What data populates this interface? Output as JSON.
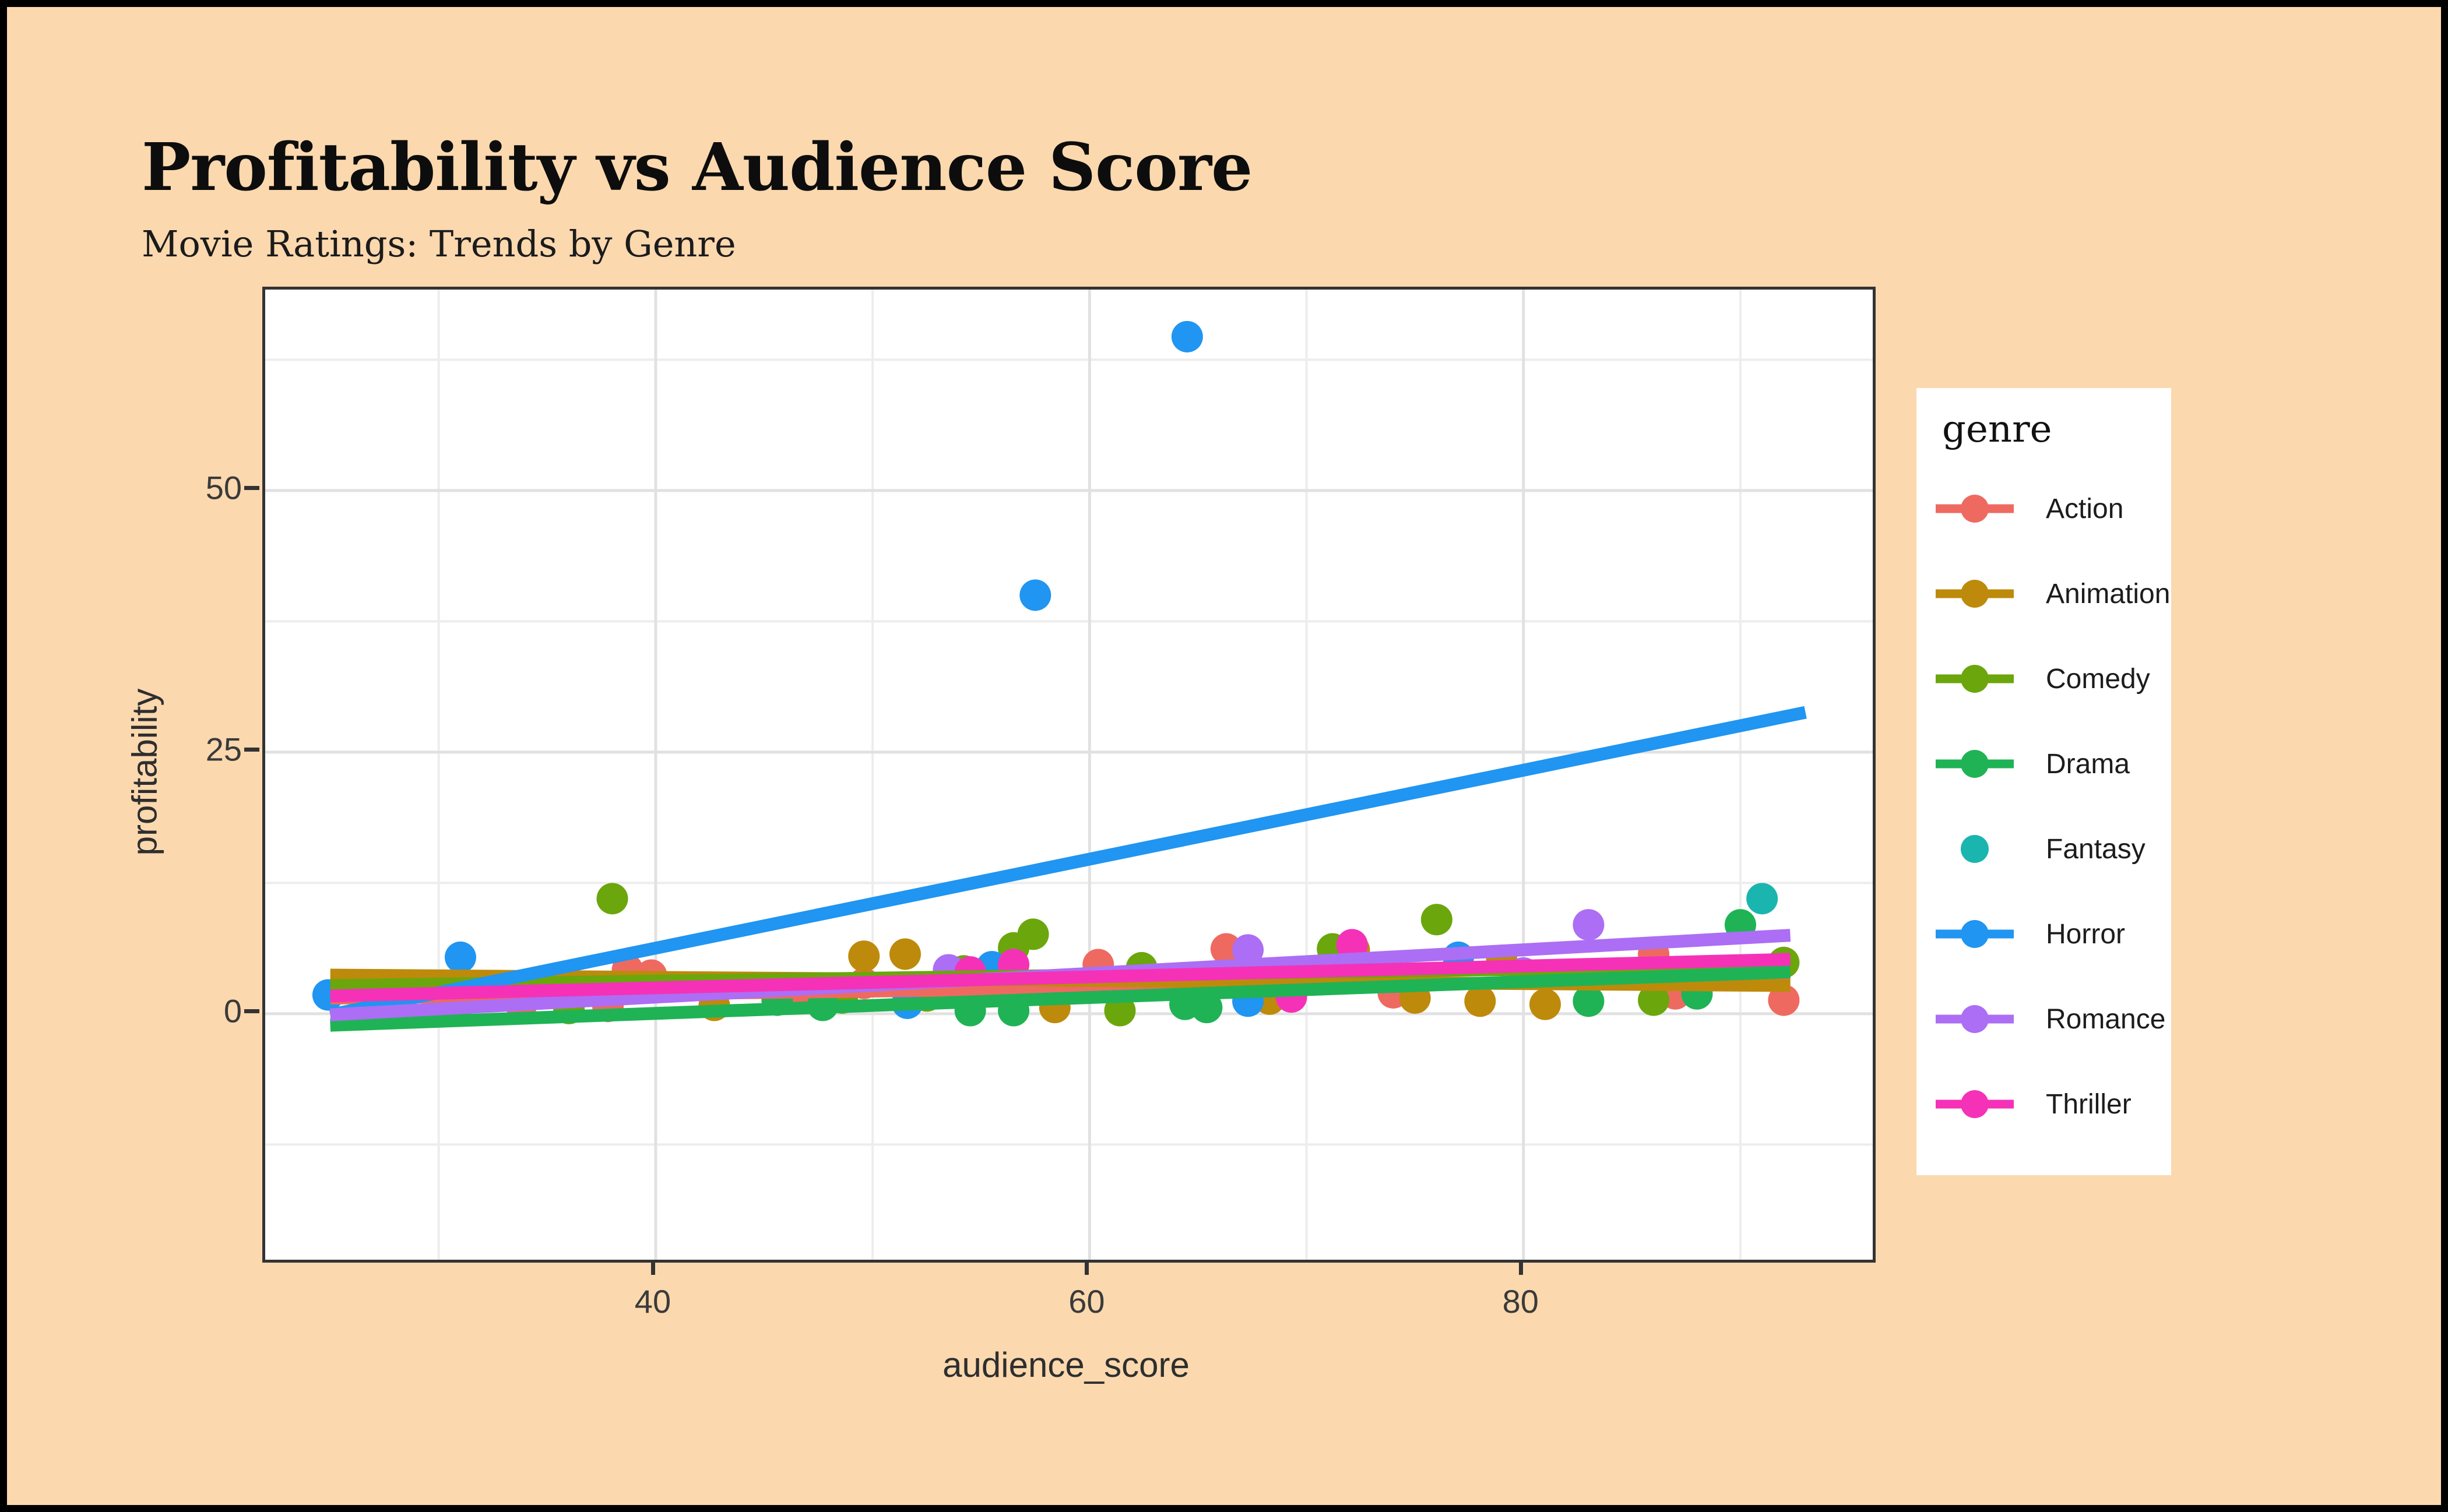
{
  "frame": {
    "background": "#FBD8AE",
    "border_color": "#000000",
    "panel_background": "#FFFFFF"
  },
  "header": {
    "title": "Profitability vs Audience Score",
    "subtitle": "Movie Ratings: Trends by Genre"
  },
  "chart_data": {
    "type": "scatter",
    "title": "Profitability vs Audience Score",
    "subtitle": "Movie Ratings: Trends by Genre",
    "xlabel": "audience_score",
    "ylabel": "profitability",
    "legend_title": "genre",
    "legend_position": "right",
    "grid": "on",
    "x_domain": [
      22.0,
      96.1
    ],
    "y_domain": [
      -23.5,
      69.2
    ],
    "x_ticks": [
      40,
      60,
      80
    ],
    "y_ticks": [
      0,
      25,
      50
    ],
    "x_minor": [
      30,
      50,
      70,
      90
    ],
    "y_minor": [
      -12.5,
      12.5,
      37.5,
      62.5
    ],
    "grid_major_color": "#E1E1E1",
    "grid_minor_color": "#EDEDED",
    "point_radius": 27,
    "line_width": 22,
    "series": [
      {
        "name": "Action",
        "color": "#EE6A60",
        "key": "line-point",
        "points": [
          [
            33.8,
            0.8
          ],
          [
            37.8,
            0.7
          ],
          [
            38.7,
            4.2
          ],
          [
            39.8,
            3.7
          ],
          [
            45.7,
            1.7
          ],
          [
            46.8,
            1.5
          ],
          [
            49.6,
            2.9
          ],
          [
            60.4,
            4.7
          ],
          [
            66.3,
            6.2
          ],
          [
            74.0,
            2.0
          ],
          [
            86.0,
            5.7
          ],
          [
            87.0,
            1.9
          ],
          [
            92.0,
            1.3
          ]
        ],
        "trend": [
          [
            25.0,
            1.5
          ],
          [
            92.3,
            3.3
          ]
        ]
      },
      {
        "name": "Animation",
        "color": "#BE8A0B",
        "key": "line-point",
        "points": [
          [
            42.7,
            0.8
          ],
          [
            49.6,
            5.5
          ],
          [
            51.5,
            5.7
          ],
          [
            58.4,
            0.6
          ],
          [
            68.3,
            1.4
          ],
          [
            72.2,
            6.1
          ],
          [
            75.0,
            1.5
          ],
          [
            78.0,
            1.2
          ],
          [
            79.0,
            5.1
          ],
          [
            81.0,
            0.9
          ]
        ],
        "trend": [
          [
            25.0,
            3.7
          ],
          [
            92.3,
            2.7
          ]
        ]
      },
      {
        "name": "Comedy",
        "color": "#6BA60C",
        "key": "line-point",
        "points": [
          [
            31.0,
            1.1
          ],
          [
            36.0,
            0.5
          ],
          [
            38.0,
            11.0
          ],
          [
            48.6,
            1.5
          ],
          [
            52.5,
            1.7
          ],
          [
            54.2,
            4.1
          ],
          [
            56.5,
            6.3
          ],
          [
            57.4,
            7.6
          ],
          [
            61.4,
            0.3
          ],
          [
            62.4,
            4.4
          ],
          [
            71.2,
            6.2
          ],
          [
            76.0,
            9.0
          ],
          [
            86.0,
            1.3
          ],
          [
            92.0,
            4.9
          ]
        ],
        "trend": [
          [
            25.0,
            2.7
          ],
          [
            92.3,
            4.6
          ]
        ]
      },
      {
        "name": "Drama",
        "color": "#1FB355",
        "key": "line-point",
        "points": [
          [
            45.6,
            1.3
          ],
          [
            47.7,
            0.8
          ],
          [
            54.5,
            0.3
          ],
          [
            56.5,
            0.3
          ],
          [
            64.4,
            0.9
          ],
          [
            65.4,
            0.6
          ],
          [
            83.0,
            1.2
          ],
          [
            88.0,
            1.9
          ],
          [
            90.0,
            8.5
          ]
        ],
        "trend": [
          [
            25.0,
            -1.1
          ],
          [
            92.3,
            4.0
          ]
        ]
      },
      {
        "name": "Fantasy",
        "color": "#1BB5AF",
        "key": "point",
        "points": [
          [
            91.0,
            11.0
          ]
        ],
        "trend": null
      },
      {
        "name": "Horror",
        "color": "#2095F1",
        "key": "line-point",
        "points": [
          [
            24.9,
            1.8
          ],
          [
            31.0,
            5.4
          ],
          [
            51.6,
            1.0
          ],
          [
            55.5,
            4.5
          ],
          [
            57.5,
            40.0
          ],
          [
            64.5,
            64.7
          ],
          [
            67.3,
            1.2
          ],
          [
            77.0,
            5.4
          ]
        ],
        "trend": [
          [
            25.0,
            -0.1
          ],
          [
            93.0,
            28.8
          ]
        ]
      },
      {
        "name": "Romance",
        "color": "#AC6EF4",
        "key": "line-point",
        "points": [
          [
            53.5,
            4.2
          ],
          [
            67.3,
            6.1
          ],
          [
            80.0,
            3.9
          ],
          [
            83.0,
            8.5
          ]
        ],
        "trend": [
          [
            25.0,
            -0.1
          ],
          [
            92.3,
            7.5
          ]
        ]
      },
      {
        "name": "Thriller",
        "color": "#F531B8",
        "key": "line-point",
        "points": [
          [
            54.5,
            4.0
          ],
          [
            56.5,
            4.7
          ],
          [
            69.3,
            1.6
          ],
          [
            72.1,
            6.6
          ]
        ],
        "trend": [
          [
            25.0,
            1.7
          ],
          [
            92.3,
            5.2
          ]
        ]
      }
    ]
  }
}
